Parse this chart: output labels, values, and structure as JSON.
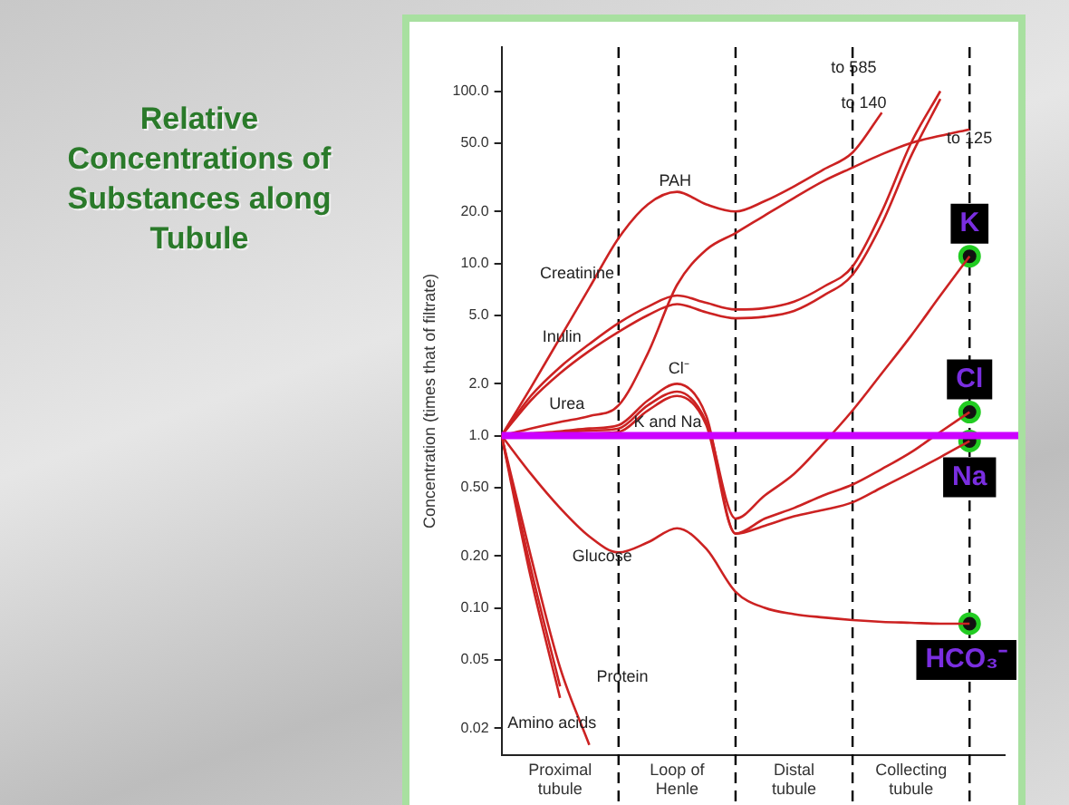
{
  "chart_data": {
    "type": "line",
    "title": "Relative Concentrations of Substances along Tubule",
    "ylabel": "Concentration (times that of filtrate)",
    "categories": [
      null,
      null,
      "Proximal tubule",
      null,
      null,
      null,
      "Loop of Henle",
      null,
      null,
      null,
      "Distal tubule",
      null,
      null,
      null,
      "Collecting tubule",
      null,
      null
    ],
    "ylim": [
      0.014,
      180
    ],
    "yticks": [
      {
        "value": 0.02,
        "label": "0.02"
      },
      {
        "value": 0.05,
        "label": "0.05"
      },
      {
        "value": 0.1,
        "label": "0.10"
      },
      {
        "value": 0.2,
        "label": "0.20"
      },
      {
        "value": 0.5,
        "label": "0.50"
      },
      {
        "value": 1,
        "label": "1.0"
      },
      {
        "value": 2,
        "label": "2.0"
      },
      {
        "value": 5,
        "label": "5.0"
      },
      {
        "value": 10,
        "label": "10.0"
      },
      {
        "value": 20,
        "label": "20.0"
      },
      {
        "value": 50,
        "label": "50.0"
      },
      {
        "value": 100,
        "label": "100.0"
      }
    ],
    "log": "y",
    "grid": "x",
    "legend": false,
    "marker": "none",
    "line_style": "solid",
    "series": [
      {
        "color": "#cc2222",
        "values": [
          1,
          1.9,
          3.7,
          7.2,
          14,
          22,
          26,
          22,
          20,
          23,
          28,
          35,
          44,
          75,
          null,
          null,
          null
        ]
      },
      {
        "color": "#cc2222",
        "values": [
          1,
          1.7,
          2.5,
          3.4,
          4.5,
          5.6,
          6.5,
          5.9,
          5.4,
          5.5,
          6,
          7.3,
          9.6,
          20,
          50,
          100,
          null
        ]
      },
      {
        "color": "#cc2222",
        "values": [
          1,
          1.6,
          2.3,
          3.1,
          4,
          5,
          5.8,
          5.2,
          4.8,
          4.9,
          5.3,
          6.5,
          8.6,
          17,
          42,
          90,
          null
        ]
      },
      {
        "color": "#cc2222",
        "values": [
          1,
          1.1,
          1.2,
          1.3,
          1.5,
          3,
          7.5,
          12,
          15,
          19,
          24,
          30,
          36,
          43,
          50,
          55,
          60
        ]
      },
      {
        "color": "#cc2222",
        "values": [
          1,
          1.02,
          1.04,
          1.07,
          1.1,
          1.5,
          1.8,
          1.2,
          0.33,
          0.45,
          0.6,
          0.9,
          1.4,
          2.3,
          3.8,
          6.5,
          11
        ]
      },
      {
        "color": "#cc2222",
        "values": [
          1,
          1.03,
          1.06,
          1.1,
          1.15,
          1.6,
          2,
          1.3,
          0.27,
          0.33,
          0.38,
          0.45,
          0.52,
          0.64,
          0.8,
          1.05,
          1.37
        ]
      },
      {
        "color": "#cc2222",
        "values": [
          1,
          1.01,
          1.02,
          1.03,
          1.05,
          1.4,
          1.7,
          1.15,
          0.27,
          0.3,
          0.34,
          0.37,
          0.41,
          0.5,
          0.61,
          0.75,
          0.93
        ]
      },
      {
        "color": "#cc2222",
        "values": [
          1,
          0.6,
          0.38,
          0.26,
          0.21,
          0.24,
          0.29,
          0.22,
          0.124,
          0.1,
          0.092,
          0.088,
          0.085,
          0.083,
          0.082,
          0.081,
          0.081
        ]
      },
      {
        "color": "#cc2222",
        "values": [
          1,
          0.15,
          0.03,
          null,
          null,
          null,
          null,
          null,
          null,
          null,
          null,
          null,
          null,
          null,
          null,
          null,
          null
        ]
      },
      {
        "color": "#cc2222",
        "values": [
          1,
          0.17,
          0.035,
          null,
          null,
          null,
          null,
          null,
          null,
          null,
          null,
          null,
          null,
          null,
          null,
          null,
          null
        ]
      },
      {
        "color": "#cc2222",
        "values": [
          1,
          0.2,
          0.045,
          0.016,
          null,
          null,
          null,
          null,
          null,
          null,
          null,
          null,
          null,
          null,
          null,
          null,
          null
        ]
      },
      {
        "type": "scatter",
        "marker": "circle",
        "color": "#22cc22",
        "values": [
          null,
          null,
          null,
          null,
          null,
          null,
          null,
          null,
          null,
          null,
          null,
          null,
          null,
          null,
          null,
          null,
          11
        ]
      },
      {
        "type": "scatter",
        "marker": "circle",
        "color": "#22cc22",
        "values": [
          null,
          null,
          null,
          null,
          null,
          null,
          null,
          null,
          null,
          null,
          null,
          null,
          null,
          null,
          null,
          null,
          1.37
        ]
      },
      {
        "type": "scatter",
        "marker": "circle",
        "color": "#22cc22",
        "values": [
          null,
          null,
          null,
          null,
          null,
          null,
          null,
          null,
          null,
          null,
          null,
          null,
          null,
          null,
          null,
          null,
          0.93
        ]
      },
      {
        "type": "scatter",
        "marker": "circle",
        "color": "#22cc22",
        "values": [
          null,
          null,
          null,
          null,
          null,
          null,
          null,
          null,
          null,
          null,
          null,
          null,
          null,
          null,
          null,
          null,
          0.081
        ]
      }
    ],
    "ref_lines": [
      {
        "axis": "y",
        "value": 1,
        "color": "#cc00ff",
        "line_style": "solid"
      }
    ],
    "annotations": [
      "PAH",
      "Creatinine",
      "Inulin",
      "Urea",
      "Cl⁻",
      "K and Na",
      "Glucose",
      "Amino acids",
      "Protein",
      "to 585",
      "to 140",
      "to 125",
      "K",
      "Cl",
      "Na",
      "HCO₃⁻"
    ]
  }
}
